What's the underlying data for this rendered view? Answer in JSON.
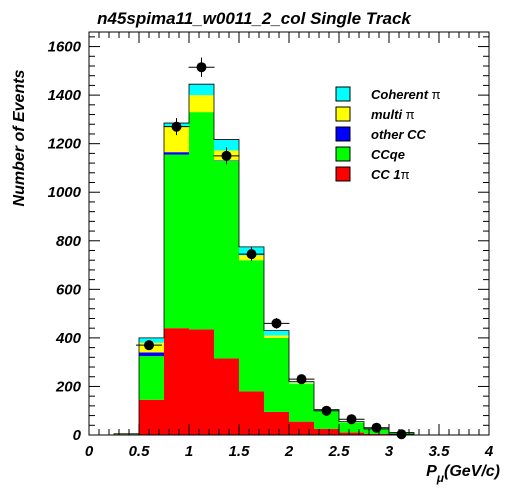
{
  "chart_data": {
    "type": "bar",
    "stacked": true,
    "title": "n45spima11_w0011_2_col Single Track",
    "xlabel_main": "P",
    "xlabel_sub": "μ",
    "xlabel_unit": "(GeV/c)",
    "ylabel": "Number of Events",
    "xlim": [
      0,
      4
    ],
    "ylim": [
      0,
      1660
    ],
    "x_ticks": [
      "0",
      "0.5",
      "1",
      "1.5",
      "2",
      "2.5",
      "3",
      "3.5",
      "4"
    ],
    "y_ticks": [
      "0",
      "200",
      "400",
      "600",
      "800",
      "1000",
      "1200",
      "1400",
      "1600"
    ],
    "bin_edges": [
      0.25,
      0.5,
      0.75,
      1.0,
      1.25,
      1.5,
      1.75,
      2.0,
      2.25,
      2.5,
      2.75,
      3.0,
      3.25
    ],
    "series": [
      {
        "name": "CC 1π",
        "color": "#ff0000",
        "values": [
          3,
          145,
          440,
          435,
          315,
          180,
          95,
          55,
          25,
          10,
          5,
          2
        ]
      },
      {
        "name": "CCqe",
        "color": "#00ff00",
        "values": [
          2,
          180,
          715,
          895,
          815,
          540,
          305,
          155,
          75,
          42,
          20,
          8
        ]
      },
      {
        "name": "other CC",
        "color": "#0000ff",
        "values": [
          0,
          15,
          10,
          0,
          2,
          0,
          0,
          0,
          0,
          0,
          0,
          0
        ]
      },
      {
        "name": "multi π",
        "color": "#ffff00",
        "values": [
          0,
          40,
          105,
          70,
          40,
          20,
          10,
          5,
          2,
          1,
          0,
          0
        ]
      },
      {
        "name": "Coherent π",
        "color": "#00ffff",
        "values": [
          0,
          20,
          15,
          45,
          45,
          35,
          20,
          5,
          3,
          2,
          0,
          0
        ]
      }
    ],
    "data_points": {
      "x": [
        0.6,
        0.875,
        1.125,
        1.375,
        1.625,
        1.875,
        2.125,
        2.375,
        2.625,
        2.875,
        3.125
      ],
      "y": [
        370,
        1270,
        1515,
        1150,
        745,
        460,
        230,
        100,
        65,
        30,
        3
      ],
      "y_err": [
        20,
        35,
        40,
        35,
        28,
        22,
        15,
        10,
        8,
        6,
        2
      ]
    },
    "legend": {
      "placement": "top-right",
      "entries": [
        {
          "label_main": "Coherent ",
          "label_greek": "π",
          "color": "#00ffff"
        },
        {
          "label_main": "multi ",
          "label_greek": "π",
          "color": "#ffff00"
        },
        {
          "label_main": "other CC",
          "label_greek": "",
          "color": "#0000ff"
        },
        {
          "label_main": "CCqe",
          "label_greek": "",
          "color": "#00ff00"
        },
        {
          "label_main": "CC 1",
          "label_greek": "π",
          "color": "#ff0000"
        }
      ]
    }
  }
}
